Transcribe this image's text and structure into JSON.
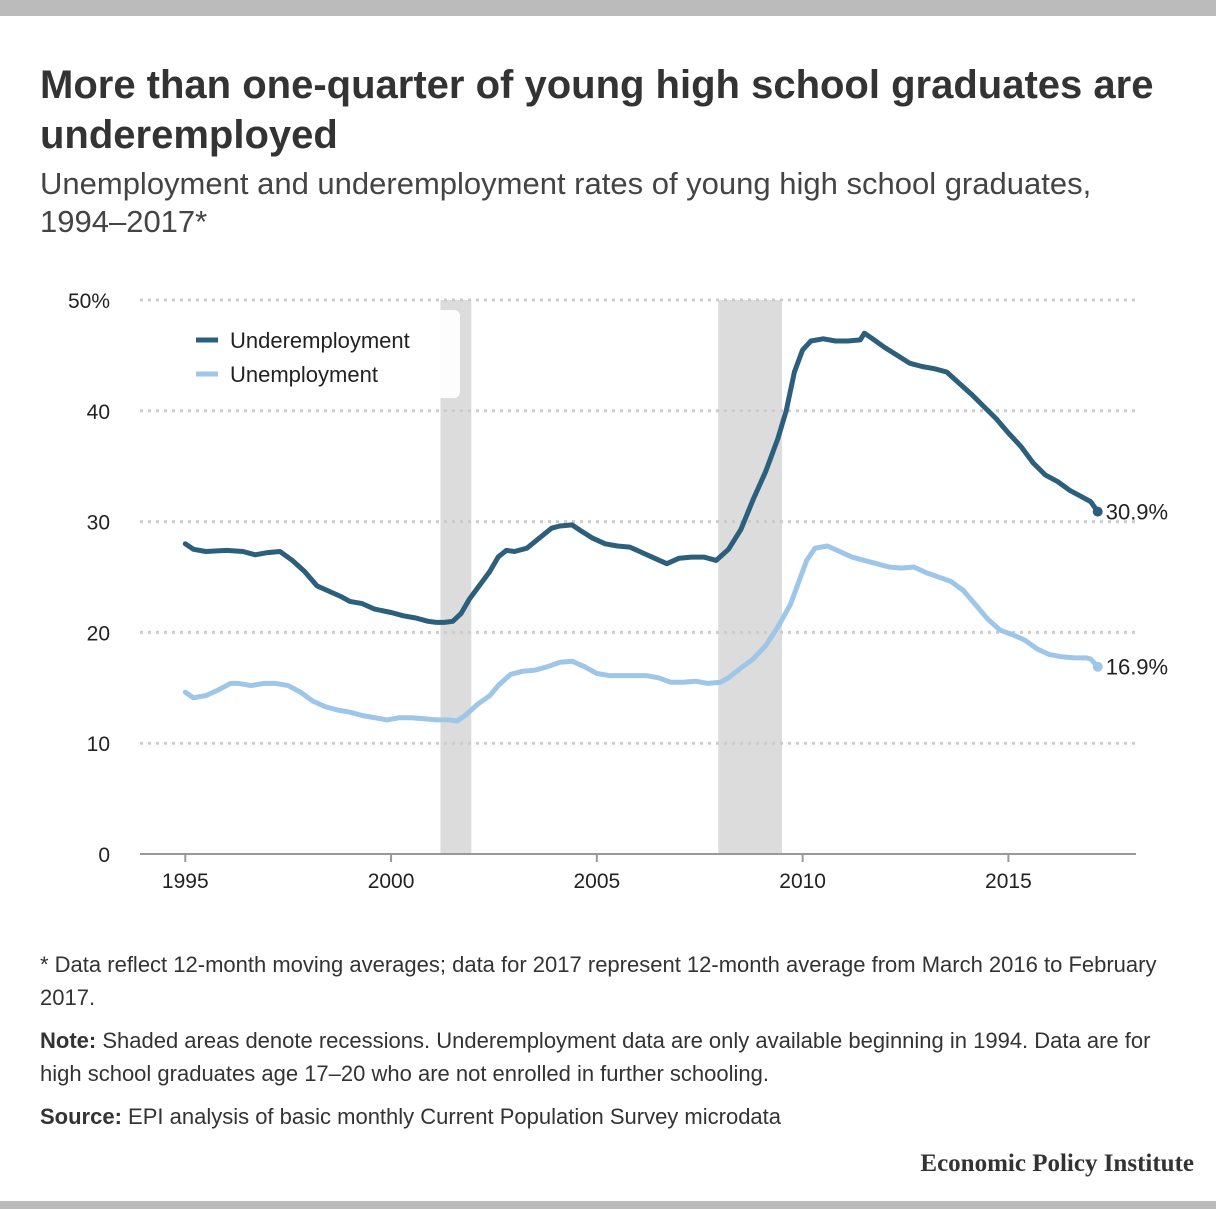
{
  "title": "More than one-quarter of young high school graduates are underemployed",
  "subtitle": "Unemployment and underemployment rates of young high school graduates, 1994–2017*",
  "footnote": "* Data reflect 12-month moving averages; data for 2017 represent 12-month average from March 2016 to February 2017.",
  "note_label": "Note:",
  "note_text": " Shaded areas denote recessions. Underemployment data are only available beginning in 1994. Data are for high school graduates age 17–20 who are not enrolled in further schooling.",
  "source_label": "Source:",
  "source_text": " EPI analysis of basic monthly Current Population Survey microdata",
  "brand": "Economic Policy Institute",
  "chart_data": {
    "type": "line",
    "xlim": [
      1993.9,
      2018.1
    ],
    "ylim": [
      0,
      50
    ],
    "y_ticks": [
      0,
      10,
      20,
      30,
      40,
      50
    ],
    "y_tick_labels": [
      "0",
      "10",
      "20",
      "30",
      "40",
      "50%"
    ],
    "x_ticks": [
      1995,
      2000,
      2005,
      2010,
      2015
    ],
    "x_tick_labels": [
      "1995",
      "2000",
      "2005",
      "2010",
      "2015"
    ],
    "grid": "horizontal dotted",
    "legend_position": "top-left",
    "recessions": [
      [
        2001.2,
        2001.95
      ],
      [
        2007.95,
        2009.5
      ]
    ],
    "series": [
      {
        "name": "Underemployment",
        "color": "#2c5f7c",
        "end_label": "30.9%",
        "points": [
          [
            1995.0,
            28.0
          ],
          [
            1995.2,
            27.5
          ],
          [
            1995.5,
            27.3
          ],
          [
            1996.0,
            27.4
          ],
          [
            1996.4,
            27.3
          ],
          [
            1996.7,
            27.0
          ],
          [
            1997.0,
            27.2
          ],
          [
            1997.3,
            27.3
          ],
          [
            1997.6,
            26.5
          ],
          [
            1997.9,
            25.5
          ],
          [
            1998.2,
            24.2
          ],
          [
            1998.5,
            23.7
          ],
          [
            1998.8,
            23.2
          ],
          [
            1999.0,
            22.8
          ],
          [
            1999.3,
            22.6
          ],
          [
            1999.6,
            22.1
          ],
          [
            2000.0,
            21.8
          ],
          [
            2000.3,
            21.5
          ],
          [
            2000.6,
            21.3
          ],
          [
            2000.9,
            21.0
          ],
          [
            2001.1,
            20.9
          ],
          [
            2001.3,
            20.9
          ],
          [
            2001.5,
            21.0
          ],
          [
            2001.7,
            21.7
          ],
          [
            2001.9,
            23.0
          ],
          [
            2002.1,
            24.0
          ],
          [
            2002.4,
            25.5
          ],
          [
            2002.6,
            26.8
          ],
          [
            2002.8,
            27.4
          ],
          [
            2003.0,
            27.3
          ],
          [
            2003.3,
            27.6
          ],
          [
            2003.6,
            28.5
          ],
          [
            2003.9,
            29.4
          ],
          [
            2004.1,
            29.6
          ],
          [
            2004.4,
            29.7
          ],
          [
            2004.6,
            29.2
          ],
          [
            2004.9,
            28.5
          ],
          [
            2005.2,
            28.0
          ],
          [
            2005.5,
            27.8
          ],
          [
            2005.8,
            27.7
          ],
          [
            2006.1,
            27.2
          ],
          [
            2006.4,
            26.7
          ],
          [
            2006.7,
            26.2
          ],
          [
            2007.0,
            26.7
          ],
          [
            2007.3,
            26.8
          ],
          [
            2007.6,
            26.8
          ],
          [
            2007.9,
            26.5
          ],
          [
            2008.2,
            27.5
          ],
          [
            2008.5,
            29.3
          ],
          [
            2008.8,
            32.0
          ],
          [
            2009.1,
            34.5
          ],
          [
            2009.4,
            37.5
          ],
          [
            2009.6,
            40.0
          ],
          [
            2009.8,
            43.5
          ],
          [
            2010.0,
            45.5
          ],
          [
            2010.2,
            46.3
          ],
          [
            2010.5,
            46.5
          ],
          [
            2010.8,
            46.3
          ],
          [
            2011.1,
            46.3
          ],
          [
            2011.4,
            46.4
          ],
          [
            2011.5,
            47.0
          ],
          [
            2011.7,
            46.5
          ],
          [
            2012.0,
            45.7
          ],
          [
            2012.3,
            45.0
          ],
          [
            2012.6,
            44.3
          ],
          [
            2012.9,
            44.0
          ],
          [
            2013.2,
            43.8
          ],
          [
            2013.5,
            43.5
          ],
          [
            2013.8,
            42.5
          ],
          [
            2014.1,
            41.5
          ],
          [
            2014.4,
            40.4
          ],
          [
            2014.7,
            39.3
          ],
          [
            2015.0,
            38.0
          ],
          [
            2015.3,
            36.8
          ],
          [
            2015.6,
            35.3
          ],
          [
            2015.9,
            34.2
          ],
          [
            2016.2,
            33.6
          ],
          [
            2016.5,
            32.8
          ],
          [
            2016.8,
            32.2
          ],
          [
            2017.0,
            31.8
          ],
          [
            2017.17,
            30.9
          ]
        ]
      },
      {
        "name": "Unemployment",
        "color": "#9ec6e8",
        "end_label": "16.9%",
        "points": [
          [
            1995.0,
            14.6
          ],
          [
            1995.2,
            14.1
          ],
          [
            1995.5,
            14.3
          ],
          [
            1995.8,
            14.8
          ],
          [
            1996.1,
            15.4
          ],
          [
            1996.3,
            15.4
          ],
          [
            1996.6,
            15.2
          ],
          [
            1996.9,
            15.4
          ],
          [
            1997.2,
            15.4
          ],
          [
            1997.5,
            15.2
          ],
          [
            1997.8,
            14.6
          ],
          [
            1998.1,
            13.8
          ],
          [
            1998.4,
            13.3
          ],
          [
            1998.7,
            13.0
          ],
          [
            1999.0,
            12.8
          ],
          [
            1999.3,
            12.5
          ],
          [
            1999.6,
            12.3
          ],
          [
            1999.9,
            12.1
          ],
          [
            2000.2,
            12.3
          ],
          [
            2000.5,
            12.3
          ],
          [
            2000.8,
            12.2
          ],
          [
            2001.1,
            12.1
          ],
          [
            2001.4,
            12.1
          ],
          [
            2001.6,
            12.0
          ],
          [
            2001.8,
            12.5
          ],
          [
            2002.1,
            13.5
          ],
          [
            2002.4,
            14.3
          ],
          [
            2002.6,
            15.2
          ],
          [
            2002.9,
            16.2
          ],
          [
            2003.2,
            16.5
          ],
          [
            2003.5,
            16.6
          ],
          [
            2003.8,
            16.9
          ],
          [
            2004.1,
            17.3
          ],
          [
            2004.4,
            17.4
          ],
          [
            2004.7,
            16.9
          ],
          [
            2005.0,
            16.3
          ],
          [
            2005.3,
            16.1
          ],
          [
            2005.6,
            16.1
          ],
          [
            2005.9,
            16.1
          ],
          [
            2006.2,
            16.1
          ],
          [
            2006.5,
            15.9
          ],
          [
            2006.8,
            15.5
          ],
          [
            2007.1,
            15.5
          ],
          [
            2007.4,
            15.6
          ],
          [
            2007.7,
            15.4
          ],
          [
            2008.0,
            15.5
          ],
          [
            2008.2,
            15.9
          ],
          [
            2008.5,
            16.8
          ],
          [
            2008.8,
            17.6
          ],
          [
            2009.1,
            18.8
          ],
          [
            2009.4,
            20.5
          ],
          [
            2009.7,
            22.5
          ],
          [
            2009.9,
            24.5
          ],
          [
            2010.1,
            26.5
          ],
          [
            2010.3,
            27.6
          ],
          [
            2010.6,
            27.8
          ],
          [
            2010.9,
            27.3
          ],
          [
            2011.2,
            26.8
          ],
          [
            2011.5,
            26.5
          ],
          [
            2011.8,
            26.2
          ],
          [
            2012.1,
            25.9
          ],
          [
            2012.4,
            25.8
          ],
          [
            2012.7,
            25.9
          ],
          [
            2013.0,
            25.4
          ],
          [
            2013.3,
            25.0
          ],
          [
            2013.6,
            24.6
          ],
          [
            2013.9,
            23.8
          ],
          [
            2014.2,
            22.5
          ],
          [
            2014.5,
            21.2
          ],
          [
            2014.8,
            20.2
          ],
          [
            2015.1,
            19.8
          ],
          [
            2015.4,
            19.3
          ],
          [
            2015.7,
            18.5
          ],
          [
            2016.0,
            18.0
          ],
          [
            2016.3,
            17.8
          ],
          [
            2016.6,
            17.7
          ],
          [
            2016.9,
            17.7
          ],
          [
            2017.0,
            17.6
          ],
          [
            2017.17,
            16.9
          ]
        ]
      }
    ]
  }
}
